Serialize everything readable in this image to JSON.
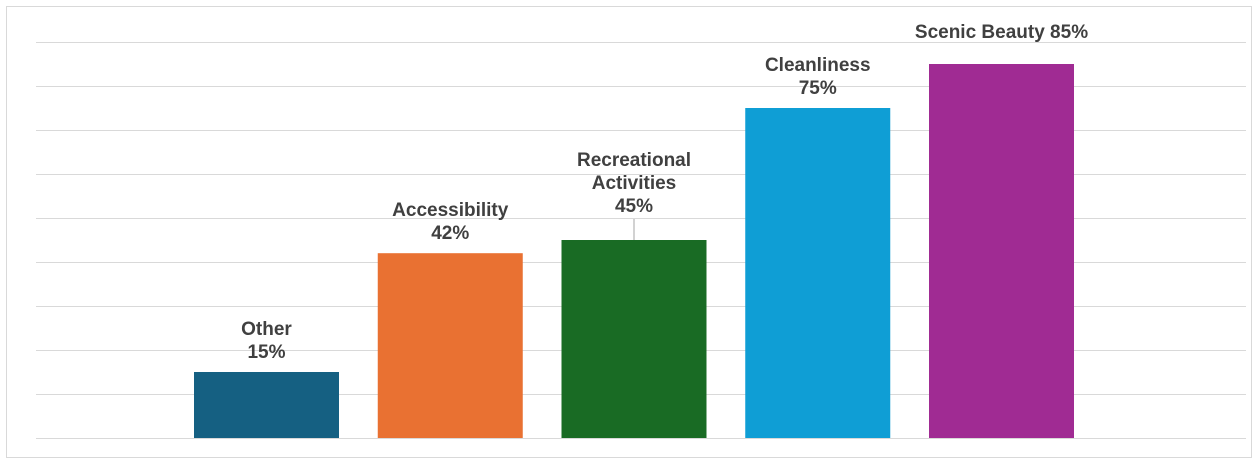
{
  "chart_data": {
    "type": "bar",
    "categories": [
      "Other",
      "Accessibility",
      "Recreational Activities",
      "Cleanliness",
      "Scenic Beauty"
    ],
    "values": [
      15,
      42,
      45,
      75,
      85
    ],
    "data_labels": [
      [
        "Other",
        "15%"
      ],
      [
        "Accessibility",
        "42%"
      ],
      [
        "Recreational",
        "Activities",
        "45%"
      ],
      [
        "Cleanliness",
        "75%"
      ],
      [
        "Scenic Beauty 85%"
      ]
    ],
    "colors": [
      "#156082",
      "#e97132",
      "#196b24",
      "#0f9ed5",
      "#a02b93"
    ],
    "ylim": [
      0,
      90
    ],
    "gridline_step": 10,
    "grid": true,
    "legend": "none"
  }
}
